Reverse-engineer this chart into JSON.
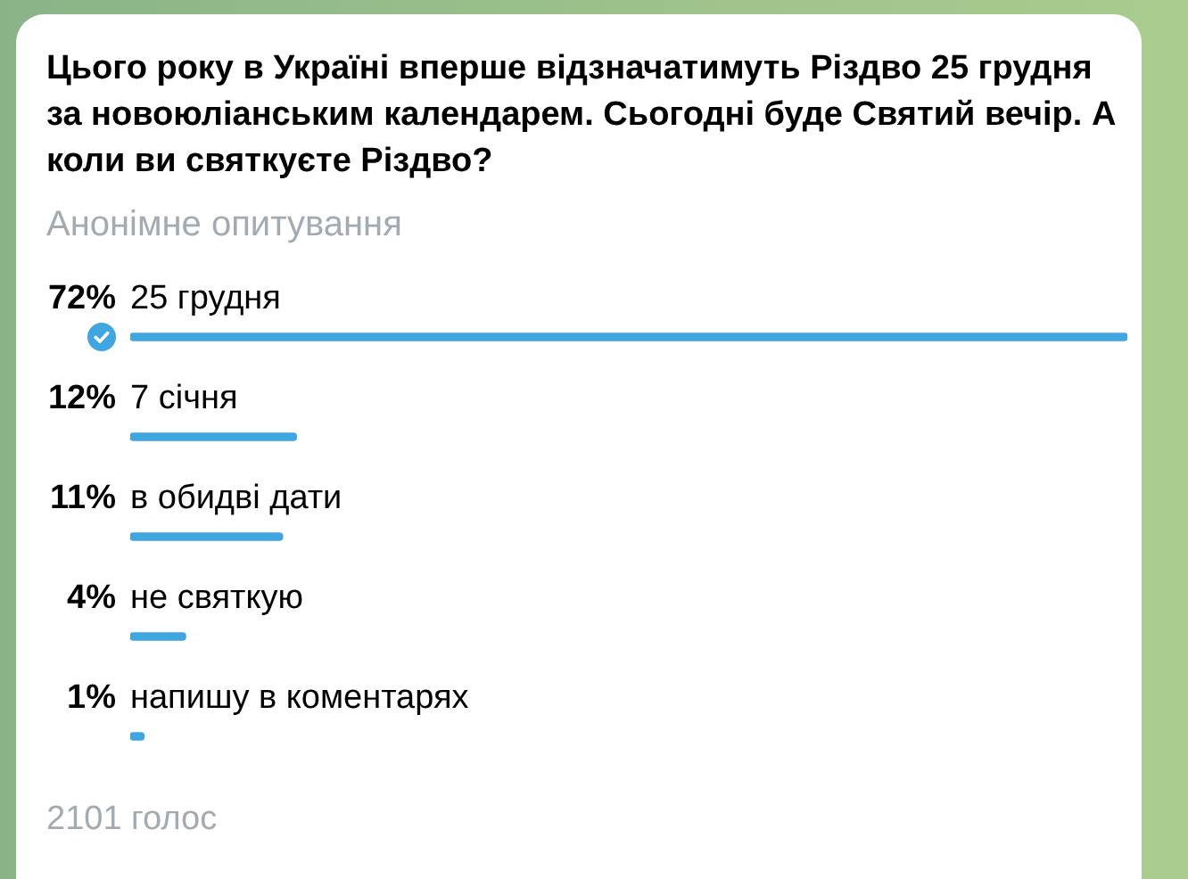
{
  "chart_data": {
    "type": "bar",
    "orientation": "horizontal",
    "title": "Цього року в Україні вперше відзначатимуть Різдво 25 грудня за новоюліанським календарем. Сьогодні буде Святий вечір. А коли ви святкуєте Різдво?",
    "subtitle": "Анонімне опитування",
    "categories": [
      "25 грудня",
      "7 січня",
      "в обидві дати",
      "не святкую",
      "напишу в коментарях"
    ],
    "values": [
      72,
      12,
      11,
      4,
      1
    ],
    "value_labels": [
      "72%",
      "12%",
      "11%",
      "4%",
      "1%"
    ],
    "color": "#40a6e2",
    "tick_labels": "y",
    "annotations": [
      "2101 голос"
    ]
  }
}
